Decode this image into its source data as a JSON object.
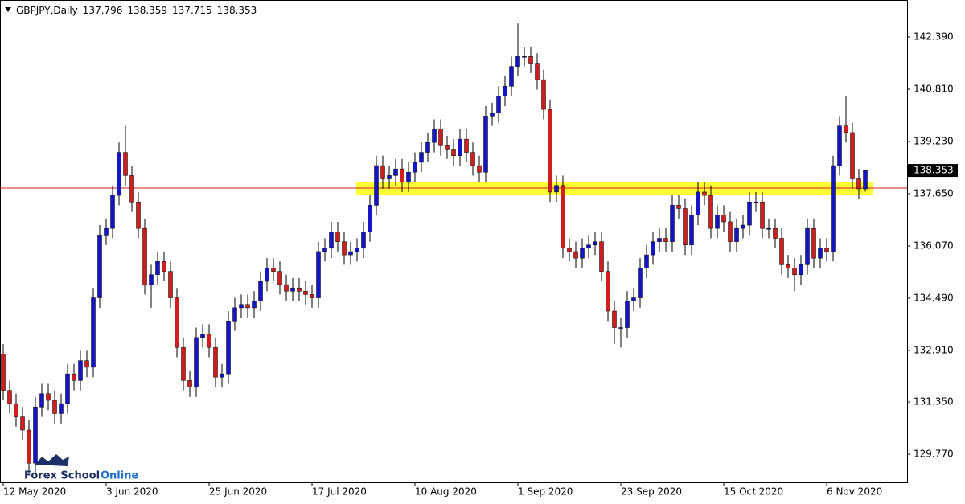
{
  "chart_data": {
    "type": "candlestick",
    "title": "GBPJPY,Daily",
    "watermark": [
      "Forex School",
      "Online"
    ],
    "up_color": "#1414c8",
    "down_color": "#d01e1e",
    "wick_color": "#000000",
    "categories": [
      "12 May 2020",
      null,
      null,
      null,
      null,
      null,
      null,
      null,
      null,
      null,
      null,
      null,
      null,
      null,
      null,
      null,
      "3 Jun 2020",
      null,
      null,
      null,
      null,
      null,
      null,
      null,
      null,
      null,
      null,
      null,
      null,
      null,
      null,
      null,
      "25 Jun 2020",
      null,
      null,
      null,
      null,
      null,
      null,
      null,
      null,
      null,
      null,
      null,
      null,
      null,
      null,
      null,
      "17 Jul 2020",
      null,
      null,
      null,
      null,
      null,
      null,
      null,
      null,
      null,
      null,
      null,
      null,
      null,
      null,
      null,
      "10 Aug 2020",
      null,
      null,
      null,
      null,
      null,
      null,
      null,
      null,
      null,
      null,
      null,
      null,
      null,
      null,
      null,
      "1 Sep 2020",
      null,
      null,
      null,
      null,
      null,
      null,
      null,
      null,
      null,
      null,
      null,
      null,
      null,
      null,
      null,
      "23 Sep 2020",
      null,
      null,
      null,
      null,
      null,
      null,
      null,
      null,
      null,
      null,
      null,
      null,
      null,
      null,
      null,
      "15 Oct 2020",
      null,
      null,
      null,
      null,
      null,
      null,
      null,
      null,
      null,
      null,
      null,
      null,
      null,
      null,
      null,
      "6 Nov 2020",
      null,
      null,
      null,
      null,
      null,
      null
    ],
    "open": [
      132.8,
      131.7,
      131.3,
      130.9,
      130.5,
      129.5,
      131.2,
      131.6,
      131.4,
      131.0,
      131.3,
      132.2,
      132.0,
      132.6,
      132.4,
      134.5,
      136.4,
      136.6,
      137.6,
      138.9,
      138.2,
      137.4,
      136.6,
      134.9,
      135.2,
      135.6,
      135.3,
      134.5,
      133.0,
      132.0,
      131.8,
      133.3,
      133.4,
      133.0,
      132.1,
      132.2,
      133.8,
      134.2,
      134.3,
      134.2,
      134.4,
      135.0,
      135.4,
      135.3,
      134.9,
      134.7,
      134.8,
      134.7,
      134.6,
      134.5,
      135.9,
      136.0,
      136.5,
      136.2,
      135.8,
      135.9,
      136.0,
      136.5,
      137.3,
      138.5,
      138.1,
      138.2,
      138.4,
      138.0,
      138.3,
      138.6,
      138.9,
      139.2,
      139.6,
      139.1,
      139.0,
      138.8,
      139.3,
      138.9,
      138.5,
      138.3,
      140.0,
      140.1,
      140.6,
      140.9,
      141.5,
      141.8,
      141.8,
      141.6,
      141.1,
      140.2,
      137.7,
      137.9,
      136.0,
      135.9,
      135.7,
      136.0,
      136.1,
      136.2,
      135.3,
      134.1,
      133.6,
      133.6,
      134.4,
      134.5,
      135.4,
      135.8,
      136.2,
      136.3,
      136.2,
      137.3,
      137.2,
      136.1,
      137.0,
      137.7,
      137.6,
      136.6,
      137.0,
      136.8,
      136.2,
      136.6,
      136.7,
      137.4,
      137.4,
      136.6,
      136.6,
      136.3,
      135.5,
      135.4,
      135.2,
      135.5,
      136.6,
      135.7,
      136.0,
      135.9,
      138.5,
      139.7,
      139.5,
      138.1,
      137.796
    ],
    "high": [
      133.1,
      132.0,
      131.6,
      131.2,
      130.8,
      131.5,
      131.9,
      131.9,
      131.7,
      131.6,
      132.5,
      132.5,
      132.9,
      132.9,
      134.8,
      136.7,
      136.9,
      137.9,
      139.2,
      139.7,
      138.5,
      137.7,
      136.9,
      135.5,
      135.9,
      135.9,
      135.6,
      134.8,
      133.3,
      132.3,
      133.6,
      133.7,
      133.7,
      133.3,
      132.5,
      134.1,
      134.5,
      134.6,
      134.6,
      134.7,
      135.3,
      135.7,
      135.7,
      135.6,
      135.2,
      135.1,
      135.1,
      135.0,
      134.9,
      136.2,
      136.3,
      136.8,
      136.8,
      136.5,
      136.2,
      136.3,
      136.8,
      137.6,
      138.8,
      138.8,
      138.5,
      138.7,
      138.7,
      138.6,
      138.9,
      139.2,
      139.5,
      139.9,
      139.9,
      139.4,
      139.3,
      139.6,
      139.6,
      139.2,
      138.8,
      140.3,
      140.4,
      140.9,
      141.2,
      141.8,
      142.8,
      142.1,
      142.1,
      141.9,
      141.4,
      140.5,
      138.2,
      138.2,
      136.3,
      136.2,
      136.3,
      136.4,
      136.5,
      136.5,
      135.6,
      134.4,
      133.9,
      134.7,
      134.8,
      135.7,
      136.1,
      136.5,
      136.6,
      136.6,
      137.6,
      137.6,
      137.5,
      137.3,
      138.0,
      138.0,
      137.9,
      137.3,
      137.3,
      137.1,
      136.9,
      137.0,
      137.7,
      137.7,
      137.7,
      136.9,
      136.9,
      136.6,
      135.8,
      135.7,
      135.8,
      136.9,
      136.9,
      136.3,
      136.3,
      138.8,
      140.0,
      140.6,
      139.8,
      138.4,
      138.359
    ],
    "low": [
      131.4,
      131.0,
      130.6,
      130.2,
      129.2,
      129.2,
      130.9,
      131.1,
      130.7,
      130.7,
      131.0,
      131.7,
      131.7,
      132.1,
      132.1,
      134.2,
      136.1,
      136.3,
      137.3,
      137.9,
      137.1,
      136.3,
      134.6,
      134.2,
      134.9,
      135.0,
      134.2,
      132.7,
      131.7,
      131.5,
      131.5,
      133.0,
      132.7,
      131.8,
      131.8,
      131.9,
      133.5,
      133.9,
      133.9,
      133.9,
      134.1,
      134.7,
      135.0,
      134.6,
      134.4,
      134.4,
      134.4,
      134.3,
      134.2,
      134.2,
      135.6,
      135.7,
      135.9,
      135.5,
      135.5,
      135.6,
      135.7,
      136.2,
      137.0,
      137.8,
      137.8,
      137.9,
      137.7,
      137.7,
      138.0,
      138.3,
      138.6,
      138.9,
      138.8,
      138.7,
      138.5,
      138.5,
      138.6,
      138.2,
      138.0,
      138.0,
      139.7,
      139.8,
      140.3,
      140.6,
      141.2,
      141.5,
      141.3,
      140.8,
      139.9,
      137.4,
      137.4,
      135.7,
      135.6,
      135.4,
      135.4,
      135.7,
      135.8,
      135.0,
      133.8,
      133.1,
      133.0,
      133.3,
      134.1,
      134.2,
      135.1,
      135.5,
      135.9,
      135.9,
      135.9,
      136.9,
      135.8,
      135.8,
      136.7,
      137.3,
      136.3,
      136.3,
      136.5,
      135.9,
      135.9,
      136.3,
      136.4,
      137.1,
      136.3,
      136.3,
      136.0,
      135.2,
      135.1,
      134.7,
      134.9,
      135.2,
      135.4,
      135.4,
      135.6,
      135.6,
      138.2,
      139.2,
      137.8,
      137.5,
      137.715
    ],
    "close": [
      131.7,
      131.3,
      130.9,
      130.5,
      129.5,
      131.2,
      131.6,
      131.4,
      131.0,
      131.3,
      132.2,
      132.0,
      132.6,
      132.4,
      134.5,
      136.4,
      136.6,
      137.6,
      138.9,
      138.2,
      137.4,
      136.6,
      134.9,
      135.2,
      135.6,
      135.3,
      134.5,
      133.0,
      132.0,
      131.8,
      133.3,
      133.4,
      133.0,
      132.1,
      132.2,
      133.8,
      134.2,
      134.3,
      134.2,
      134.4,
      135.0,
      135.4,
      135.3,
      134.9,
      134.7,
      134.8,
      134.7,
      134.6,
      134.5,
      135.9,
      136.0,
      136.5,
      136.2,
      135.8,
      135.9,
      136.0,
      136.5,
      137.3,
      138.5,
      138.1,
      138.2,
      138.4,
      138.0,
      138.3,
      138.6,
      138.9,
      139.2,
      139.6,
      139.1,
      139.0,
      138.8,
      139.3,
      138.9,
      138.5,
      138.3,
      140.0,
      140.1,
      140.6,
      140.9,
      141.5,
      141.8,
      141.8,
      141.6,
      141.1,
      140.2,
      137.7,
      137.9,
      136.0,
      135.9,
      135.7,
      136.0,
      136.1,
      136.2,
      135.3,
      134.1,
      133.6,
      133.6,
      134.4,
      134.5,
      135.4,
      135.8,
      136.2,
      136.3,
      136.2,
      137.3,
      137.2,
      136.1,
      137.0,
      137.7,
      137.6,
      136.6,
      137.0,
      136.8,
      136.2,
      136.6,
      136.7,
      137.4,
      137.4,
      136.6,
      136.6,
      136.3,
      135.5,
      135.4,
      135.2,
      135.5,
      136.6,
      135.7,
      136.0,
      135.9,
      138.5,
      139.7,
      139.5,
      138.1,
      137.796,
      138.353
    ],
    "ylim": [
      128.92,
      143.51
    ],
    "yticks": [
      {
        "value": 142.39,
        "label": "142.390"
      },
      {
        "value": 140.81,
        "label": "140.810"
      },
      {
        "value": 139.23,
        "label": "139.230"
      },
      {
        "value": 137.65,
        "label": "137.650"
      },
      {
        "value": 136.07,
        "label": "136.070"
      },
      {
        "value": 134.49,
        "label": "134.490"
      },
      {
        "value": 132.91,
        "label": "132.910"
      },
      {
        "value": 131.35,
        "label": "131.350"
      },
      {
        "value": 129.77,
        "label": "129.770"
      }
    ],
    "zone": {
      "range": [
        137.62,
        138.01
      ],
      "color": "#ffff33"
    },
    "hline": {
      "value": 137.82,
      "color": "#d01e1e"
    },
    "grid": false
  }
}
